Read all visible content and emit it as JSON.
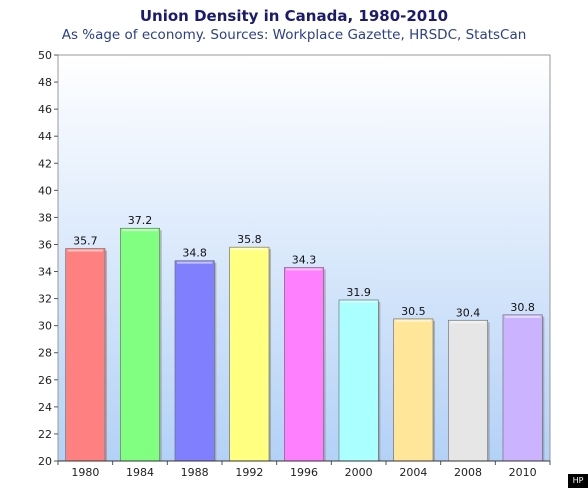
{
  "chart_data": {
    "type": "bar",
    "title": "Union Density in Canada, 1980-2010",
    "subtitle": "As %age of economy. Sources: Workplace Gazette, HRSDC, StatsCan",
    "categories": [
      "1980",
      "1984",
      "1988",
      "1992",
      "1996",
      "2000",
      "2004",
      "2008",
      "2010"
    ],
    "values": [
      35.7,
      37.2,
      34.8,
      35.8,
      34.3,
      31.9,
      30.5,
      30.4,
      30.8
    ],
    "data_labels": [
      "35.7",
      "37.2",
      "34.8",
      "35.8",
      "34.3",
      "31.9",
      "30.5",
      "30.4",
      "30.8"
    ],
    "ylim": [
      20,
      50
    ],
    "yticks": [
      "20",
      "22",
      "24",
      "26",
      "28",
      "30",
      "32",
      "34",
      "36",
      "38",
      "40",
      "42",
      "44",
      "46",
      "48",
      "50"
    ],
    "xlabel": "",
    "ylabel": "",
    "grid": false,
    "background_gradient": [
      "#ffffff",
      "#b3d1f7"
    ],
    "bar_colors": [
      "#ff8080",
      "#80ff80",
      "#8080ff",
      "#ffff80",
      "#ff80ff",
      "#aaffff",
      "#ffe699",
      "#e6e6e6",
      "#ccb3ff"
    ]
  },
  "badge": {
    "text": "HP"
  }
}
